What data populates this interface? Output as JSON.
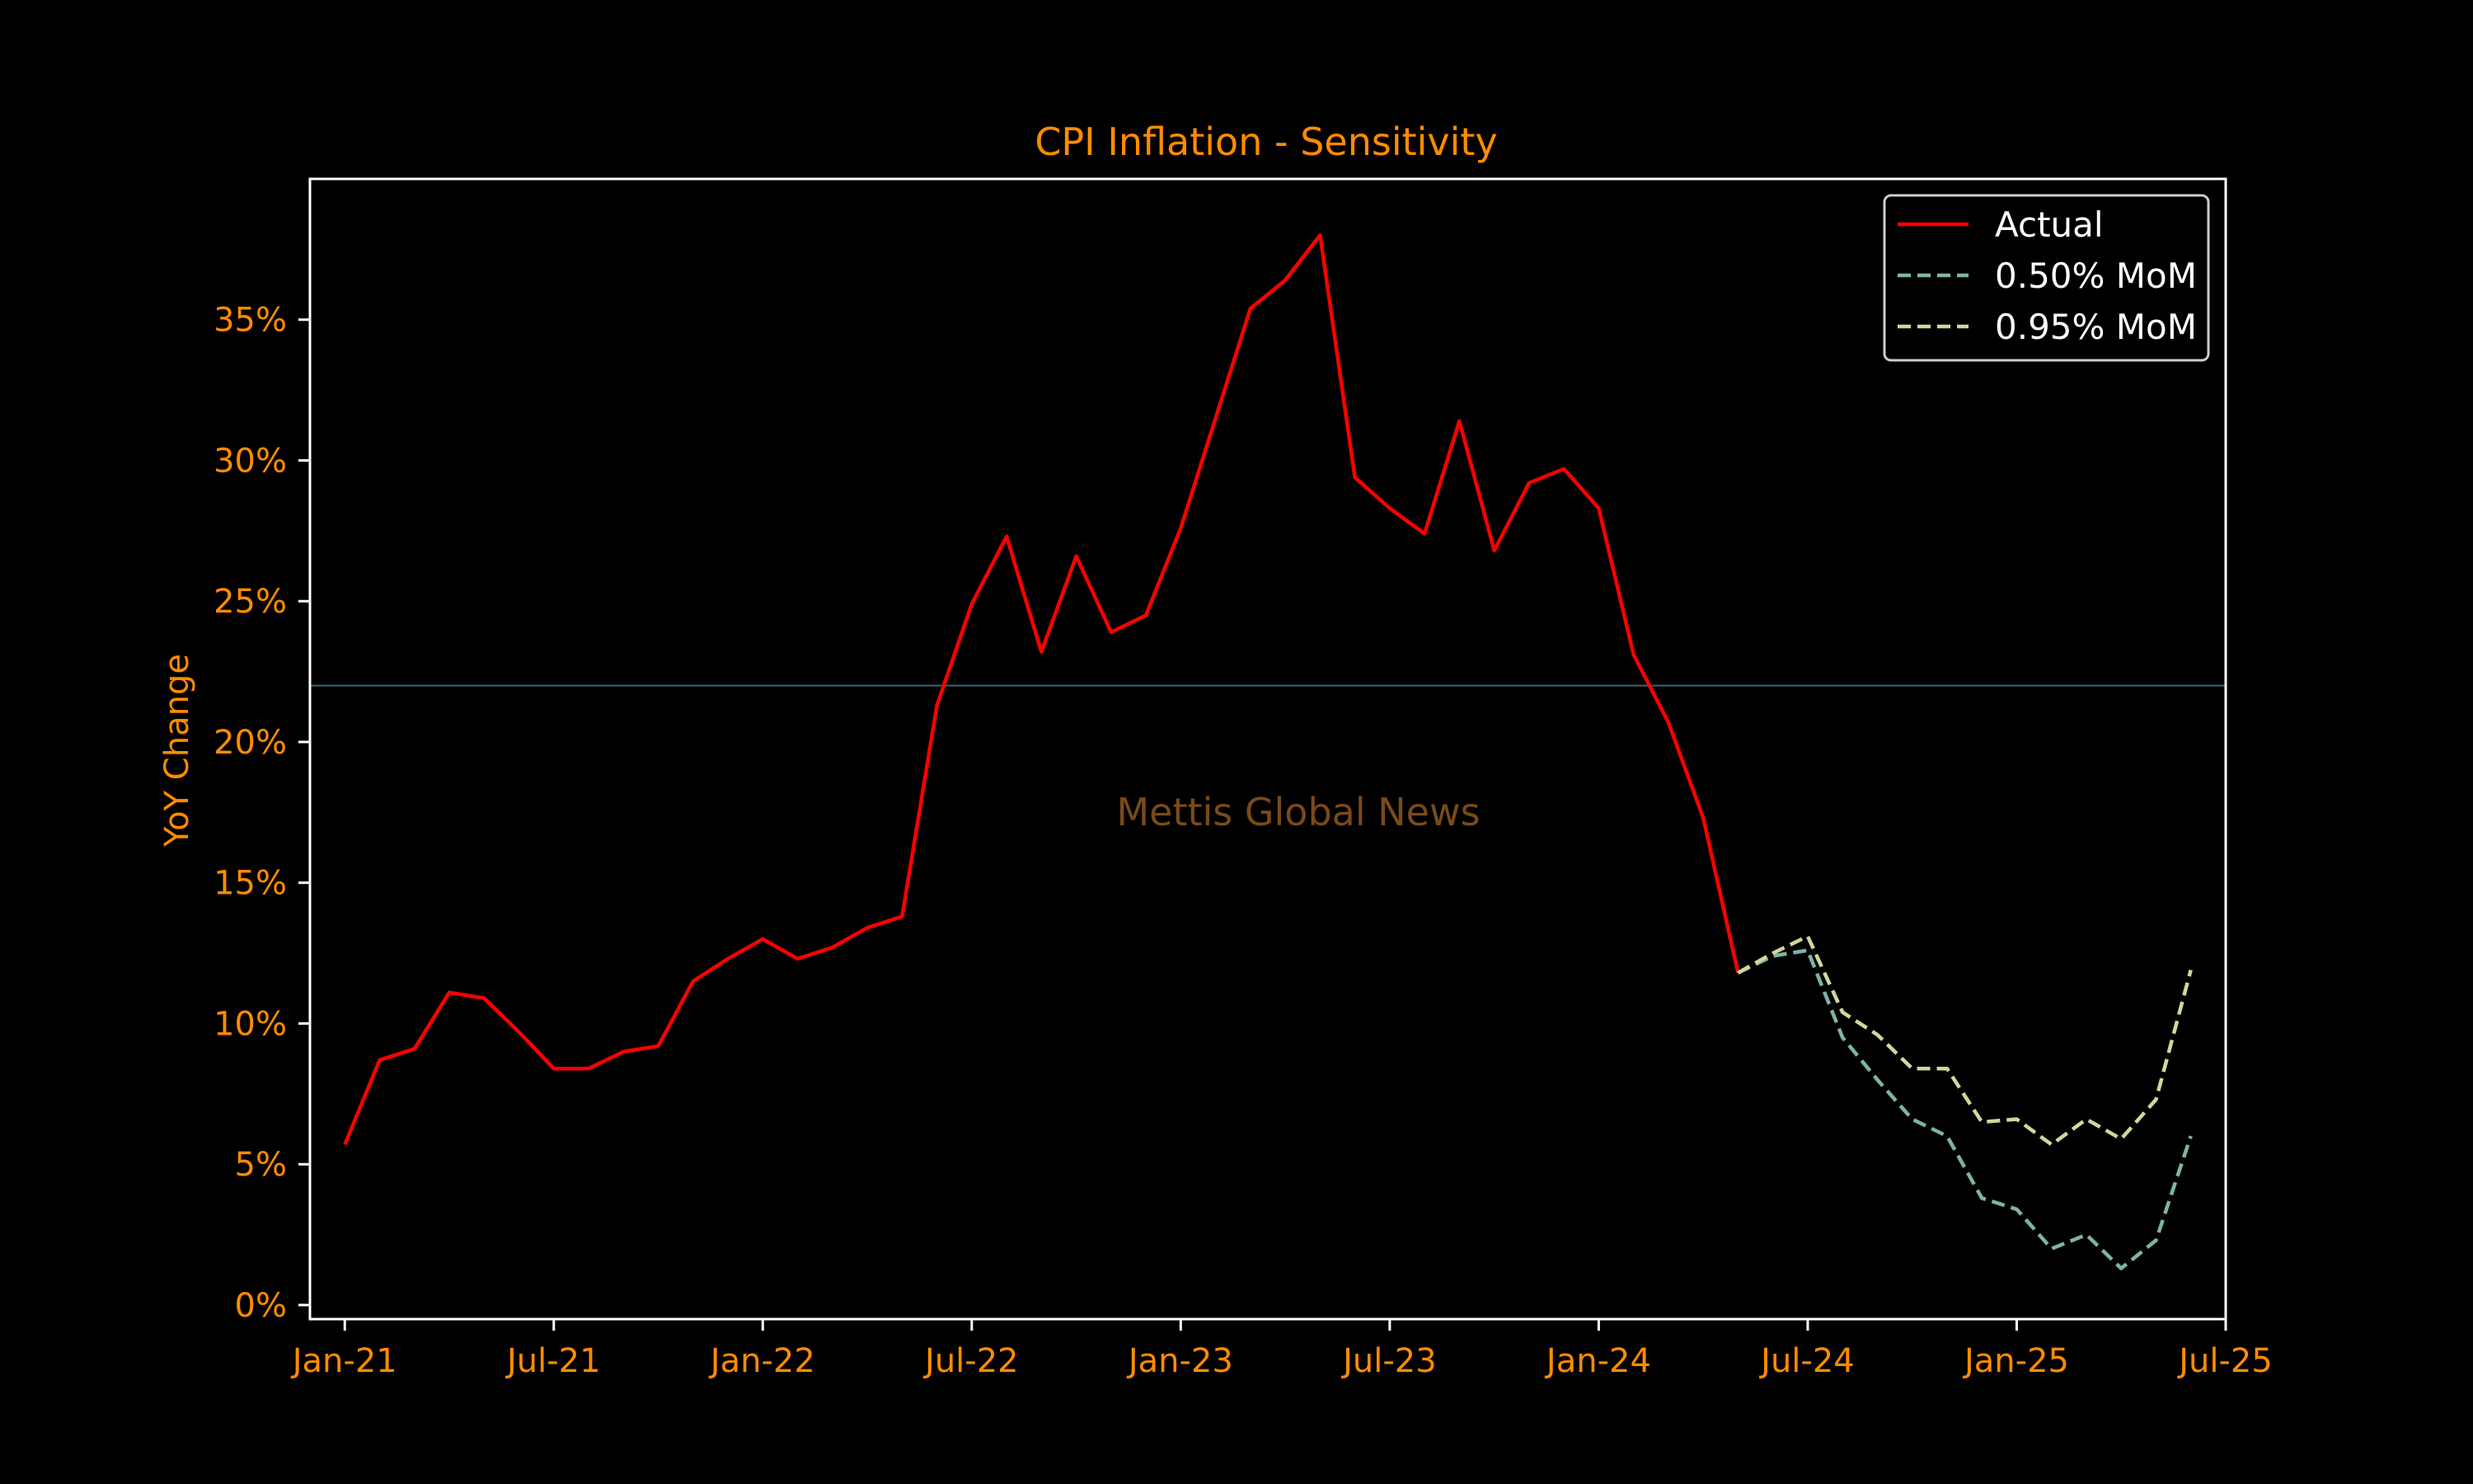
{
  "chart_data": {
    "type": "line",
    "title": "CPI Inflation - Sensitivity",
    "xlabel": "",
    "ylabel": "YoY Change",
    "watermark": "Mettis Global News",
    "reference_line_y": 22.0,
    "xlim": [
      "2020-12",
      "2025-07"
    ],
    "ylim": [
      -0.5,
      40
    ],
    "x_ticks": [
      "2021-01",
      "2021-07",
      "2022-01",
      "2022-07",
      "2023-01",
      "2023-07",
      "2024-01",
      "2024-07",
      "2025-01",
      "2025-07"
    ],
    "x_tick_labels": [
      "Jan-21",
      "Jul-21",
      "Jan-22",
      "Jul-22",
      "Jan-23",
      "Jul-23",
      "Jan-24",
      "Jul-24",
      "Jan-25",
      "Jul-25"
    ],
    "y_ticks": [
      0,
      5,
      10,
      15,
      20,
      25,
      30,
      35
    ],
    "y_tick_labels": [
      "0%",
      "5%",
      "10%",
      "15%",
      "20%",
      "25%",
      "30%",
      "35%"
    ],
    "grid": false,
    "legend_position": "top-right",
    "series": [
      {
        "name": "Actual",
        "color": "#ff0000",
        "dash": "solid",
        "x": [
          "2021-01",
          "2021-02",
          "2021-03",
          "2021-04",
          "2021-05",
          "2021-06",
          "2021-07",
          "2021-08",
          "2021-09",
          "2021-10",
          "2021-11",
          "2021-12",
          "2022-01",
          "2022-02",
          "2022-03",
          "2022-04",
          "2022-05",
          "2022-06",
          "2022-07",
          "2022-08",
          "2022-09",
          "2022-10",
          "2022-11",
          "2022-12",
          "2023-01",
          "2023-02",
          "2023-03",
          "2023-04",
          "2023-05",
          "2023-06",
          "2023-07",
          "2023-08",
          "2023-09",
          "2023-10",
          "2023-11",
          "2023-12",
          "2024-01",
          "2024-02",
          "2024-03",
          "2024-04",
          "2024-05"
        ],
        "values": [
          5.7,
          8.7,
          9.1,
          11.1,
          10.9,
          9.7,
          8.4,
          8.4,
          9.0,
          9.2,
          11.5,
          12.3,
          13.0,
          12.3,
          12.7,
          13.4,
          13.8,
          21.3,
          24.9,
          27.3,
          23.2,
          26.6,
          23.9,
          24.5,
          27.6,
          31.5,
          35.4,
          36.4,
          38.0,
          29.4,
          28.3,
          27.4,
          31.4,
          26.8,
          29.2,
          29.7,
          28.3,
          23.1,
          20.7,
          17.3,
          11.8
        ]
      },
      {
        "name": "0.50% MoM",
        "color": "#7fb3a8",
        "dash": "dashed",
        "x": [
          "2024-05",
          "2024-06",
          "2024-07",
          "2024-08",
          "2024-09",
          "2024-10",
          "2024-11",
          "2024-12",
          "2025-01",
          "2025-02",
          "2025-03",
          "2025-04",
          "2025-05",
          "2025-06"
        ],
        "values": [
          11.8,
          12.4,
          12.6,
          9.5,
          8.0,
          6.6,
          6.0,
          3.8,
          3.4,
          2.0,
          2.5,
          1.3,
          2.3,
          6.0
        ]
      },
      {
        "name": "0.95% MoM",
        "color": "#d4d69a",
        "dash": "dashed",
        "x": [
          "2024-05",
          "2024-06",
          "2024-07",
          "2024-08",
          "2024-09",
          "2024-10",
          "2024-11",
          "2024-12",
          "2025-01",
          "2025-02",
          "2025-03",
          "2025-04",
          "2025-05",
          "2025-06"
        ],
        "values": [
          11.8,
          12.5,
          13.1,
          10.4,
          9.6,
          8.4,
          8.4,
          6.5,
          6.6,
          5.7,
          6.6,
          5.9,
          7.3,
          11.9
        ]
      }
    ]
  }
}
